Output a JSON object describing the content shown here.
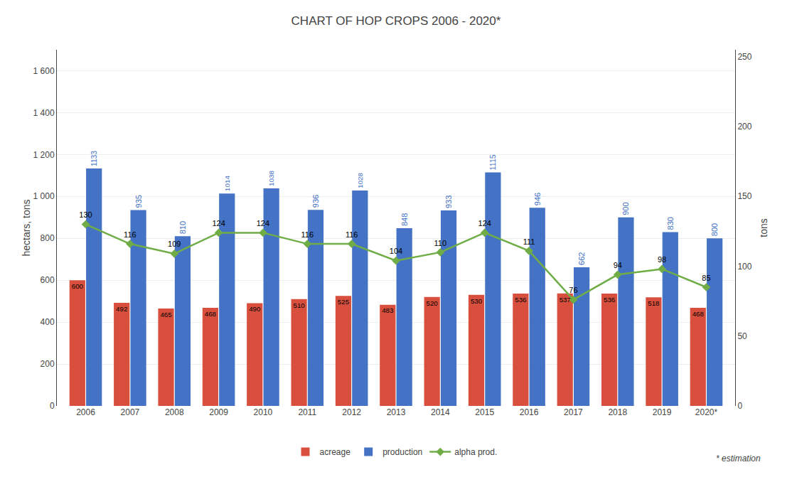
{
  "chart_data": {
    "type": "bar",
    "title": "CHART OF HOP CROPS 2006 - 2020*",
    "categories": [
      "2006",
      "2007",
      "2008",
      "2009",
      "2010",
      "2011",
      "2012",
      "2013",
      "2014",
      "2015",
      "2016",
      "2017",
      "2018",
      "2019",
      "2020*"
    ],
    "series": [
      {
        "name": "acreage",
        "color": "#D94F3D",
        "values": [
          600,
          492,
          465,
          468,
          490,
          510,
          525,
          483,
          520,
          530,
          536,
          537,
          536,
          518,
          468
        ]
      },
      {
        "name": "production",
        "color": "#4472C4",
        "values": [
          1133,
          935,
          810,
          1014,
          1038,
          936,
          1028,
          848,
          933,
          1115,
          946,
          662,
          900,
          830,
          800
        ]
      },
      {
        "name": "alpha prod.",
        "type": "line",
        "marker": "diamond",
        "axis": "y2",
        "color": "#70AD47",
        "values": [
          130,
          116,
          109,
          124,
          124,
          116,
          116,
          104,
          110,
          124,
          111,
          76,
          94,
          98,
          85
        ]
      }
    ],
    "ylabel": "hectars, tons",
    "y2label": "tons",
    "ylim": [
      0,
      1700
    ],
    "yticks": [
      0,
      200,
      400,
      600,
      800,
      {
        "value": 1000,
        "label": "1 000"
      },
      {
        "value": 1200,
        "label": "1 200"
      },
      {
        "value": 1400,
        "label": "1 400"
      },
      {
        "value": 1600,
        "label": "1 600"
      }
    ],
    "y2lim": [
      0,
      255
    ],
    "y2ticks": [
      0,
      50,
      100,
      150,
      200,
      250
    ],
    "grid": true,
    "data_labels": true,
    "legend": "bottom",
    "annotations": [
      "* estimation"
    ]
  }
}
